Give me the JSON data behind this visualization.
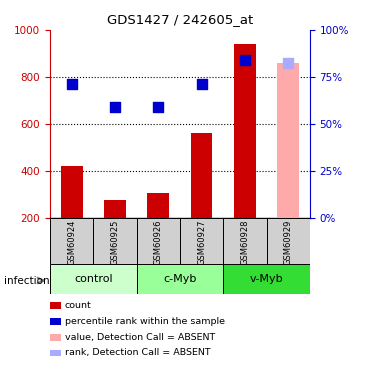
{
  "title": "GDS1427 / 242605_at",
  "samples": [
    "GSM60924",
    "GSM60925",
    "GSM60926",
    "GSM60927",
    "GSM60928",
    "GSM60929"
  ],
  "groups": [
    {
      "label": "control",
      "samples_idx": [
        0,
        1
      ],
      "color": "#ccffcc"
    },
    {
      "label": "c-Myb",
      "samples_idx": [
        2,
        3
      ],
      "color": "#99ff99"
    },
    {
      "label": "v-Myb",
      "samples_idx": [
        4,
        5
      ],
      "color": "#33dd33"
    }
  ],
  "bar_values": [
    420,
    275,
    305,
    560,
    940,
    860
  ],
  "bar_colors": [
    "#cc0000",
    "#cc0000",
    "#cc0000",
    "#cc0000",
    "#cc0000",
    "#ffaaaa"
  ],
  "dot_values": [
    770,
    670,
    670,
    770,
    870,
    860
  ],
  "dot_colors": [
    "#0000cc",
    "#0000cc",
    "#0000cc",
    "#0000cc",
    "#0000cc",
    "#aaaaff"
  ],
  "ylim_left": [
    200,
    1000
  ],
  "ylim_right": [
    0,
    100
  ],
  "yticks_left": [
    200,
    400,
    600,
    800,
    1000
  ],
  "yticks_right": [
    0,
    25,
    50,
    75,
    100
  ],
  "hlines": [
    400,
    600,
    800
  ],
  "bar_width": 0.5,
  "dot_size": 45,
  "legend_items": [
    {
      "color": "#cc0000",
      "label": "count"
    },
    {
      "color": "#0000cc",
      "label": "percentile rank within the sample"
    },
    {
      "color": "#ffaaaa",
      "label": "value, Detection Call = ABSENT"
    },
    {
      "color": "#aaaaff",
      "label": "rank, Detection Call = ABSENT"
    }
  ],
  "infection_label": "infection",
  "sample_area_color": "#d0d0d0"
}
